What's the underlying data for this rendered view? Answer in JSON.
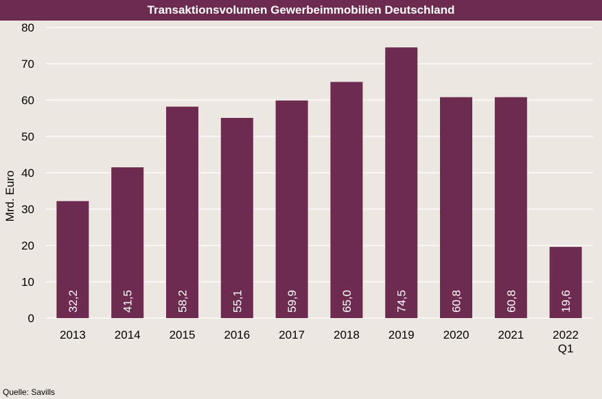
{
  "colors": {
    "bar": "#6d2b50",
    "background": "#ede7e1",
    "grid": "#ffffff",
    "title_bg": "#6d2b50"
  },
  "source": "Quelle: Savills",
  "chart_data": {
    "type": "bar",
    "title": "Transaktionsvolumen Gewerbeimmobilien Deutschland",
    "ylabel": "Mrd. Euro",
    "xlabel": "",
    "ylim": [
      0,
      80
    ],
    "yticks": [
      0,
      10,
      20,
      30,
      40,
      50,
      60,
      70,
      80
    ],
    "grid": true,
    "categories": [
      [
        "2013"
      ],
      [
        "2014"
      ],
      [
        "2015"
      ],
      [
        "2016"
      ],
      [
        "2017"
      ],
      [
        "2018"
      ],
      [
        "2019"
      ],
      [
        "2020"
      ],
      [
        "2021"
      ],
      [
        "2022",
        "Q1"
      ]
    ],
    "values": [
      32.2,
      41.5,
      58.2,
      55.1,
      59.9,
      65.0,
      74.5,
      60.8,
      60.8,
      19.6
    ],
    "value_labels": [
      "32,2",
      "41,5",
      "58,2",
      "55,1",
      "59,9",
      "65,0",
      "74,5",
      "60,8",
      "60,8",
      "19,6"
    ]
  }
}
